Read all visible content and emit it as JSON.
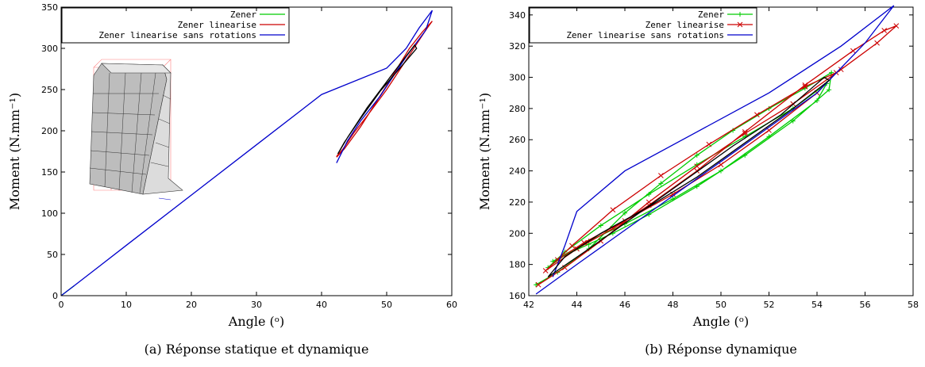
{
  "colors": {
    "zener": "#00cc00",
    "zener_lin": "#cc0000",
    "zener_lin_sr": "#0000cc",
    "dark": "#000000"
  },
  "chart_data": [
    {
      "type": "line",
      "caption": "(a) Réponse statique et dynamique",
      "xlabel": "Angle (ᵒ)",
      "ylabel": "Moment (N.mm⁻¹)",
      "xlim": [
        0,
        60
      ],
      "ylim": [
        0,
        350
      ],
      "xticks": [
        "0",
        "10",
        "20",
        "30",
        "40",
        "50",
        "60"
      ],
      "yticks": [
        "0",
        "50",
        "100",
        "150",
        "200",
        "250",
        "300",
        "350"
      ],
      "legend_position": "top-left",
      "series": [
        {
          "name": "Zener",
          "color": "#00cc00",
          "x": [
            0,
            1,
            2
          ],
          "y": [
            0,
            6,
            12
          ]
        },
        {
          "name": "Zener linearise",
          "color": "#cc0000",
          "x": [
            42.3,
            43.5,
            46,
            50,
            53.5,
            55.5,
            57,
            56,
            54,
            50,
            47,
            45,
            43.3,
            42.4,
            42.3
          ],
          "y": [
            168,
            178,
            205,
            255,
            300,
            320,
            333,
            322,
            298,
            250,
            218,
            198,
            178,
            170,
            168
          ]
        },
        {
          "name": "Zener linearise sans rotations",
          "color": "#0000cc",
          "x": [
            0,
            2,
            10,
            20,
            30,
            40,
            50,
            53,
            55,
            57,
            56,
            53,
            49,
            46,
            44,
            42.3
          ],
          "y": [
            0,
            12,
            61,
            122,
            183,
            244,
            276,
            300,
            325,
            346,
            322,
            290,
            242,
            212,
            188,
            161
          ]
        },
        {
          "name": "",
          "color": "#000000",
          "x": [
            42.5,
            44,
            47,
            51,
            54.3,
            54.6,
            53,
            49,
            46,
            43.5,
            42.5
          ],
          "y": [
            172,
            192,
            228,
            270,
            304,
            300,
            285,
            248,
            215,
            186,
            172
          ]
        }
      ]
    },
    {
      "type": "line",
      "caption": "(b) Réponse dynamique",
      "xlabel": "Angle (ᵒ)",
      "ylabel": "Moment (N.mm⁻¹)",
      "xlim": [
        42,
        58
      ],
      "ylim": [
        160,
        345
      ],
      "xticks": [
        "42",
        "44",
        "46",
        "48",
        "50",
        "52",
        "54",
        "56",
        "58"
      ],
      "yticks": [
        "160",
        "180",
        "200",
        "220",
        "240",
        "260",
        "280",
        "300",
        "320",
        "340"
      ],
      "legend_position": "top-left",
      "series": [
        {
          "name": "Zener",
          "color": "#00cc00",
          "marker": "+",
          "x": [
            42.3,
            43.2,
            44.5,
            46,
            47.5,
            49,
            50.5,
            52,
            53.5,
            54.6,
            54.5,
            53,
            51,
            49,
            47,
            45.5,
            44.5,
            43.5,
            42.8,
            43.5,
            45,
            47,
            49,
            51,
            53,
            54.4,
            54,
            52,
            50,
            48,
            46,
            44.5,
            43
          ],
          "y": [
            167,
            175,
            190,
            213,
            232,
            250,
            266,
            280,
            293,
            303,
            292,
            272,
            250,
            230,
            212,
            200,
            193,
            186,
            178,
            188,
            205,
            225,
            244,
            262,
            280,
            296,
            285,
            262,
            240,
            222,
            206,
            195,
            182
          ]
        },
        {
          "name": "Zener linearise",
          "color": "#cc0000",
          "marker": "x",
          "x": [
            42.4,
            43.5,
            45,
            47,
            49,
            51,
            53,
            55,
            56.5,
            57.3,
            56.8,
            55.5,
            53.5,
            51,
            49,
            47,
            45.5,
            44,
            42.7,
            43.8,
            45.5,
            47.5,
            49.5,
            51.5,
            53.5,
            54.8,
            54,
            52,
            50,
            48,
            46,
            44.3,
            43.2
          ],
          "y": [
            167,
            178,
            195,
            220,
            243,
            264,
            283,
            305,
            322,
            333,
            330,
            317,
            295,
            265,
            240,
            218,
            203,
            190,
            176,
            192,
            215,
            237,
            257,
            276,
            294,
            303,
            290,
            266,
            244,
            225,
            208,
            194,
            183
          ]
        },
        {
          "name": "Zener linearise sans rotations",
          "color": "#0000cc",
          "x": [
            42.3,
            44,
            46,
            48,
            50,
            52,
            54,
            56,
            57.2,
            55,
            52,
            49,
            46,
            44,
            43.5,
            43
          ],
          "y": [
            161,
            180,
            202,
            224,
            246,
            268,
            290,
            322,
            346,
            320,
            290,
            265,
            240,
            214,
            192,
            172
          ]
        },
        {
          "name": "",
          "color": "#000000",
          "x": [
            42.8,
            44.5,
            46.5,
            48.5,
            50.5,
            52.5,
            54.3,
            54.5,
            53,
            51,
            49,
            47,
            45,
            43.5,
            42.8
          ],
          "y": [
            172,
            190,
            212,
            234,
            256,
            276,
            300,
            298,
            280,
            258,
            236,
            217,
            200,
            185,
            172
          ]
        }
      ]
    }
  ]
}
